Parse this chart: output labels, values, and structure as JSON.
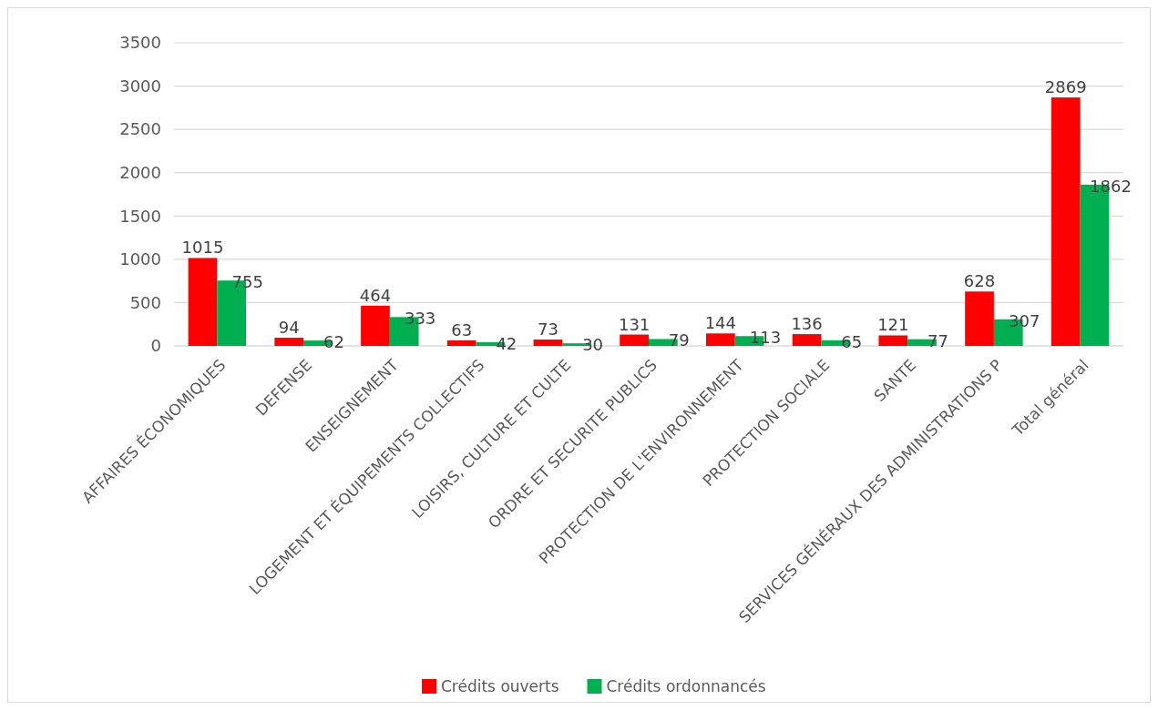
{
  "chart_data": {
    "type": "bar",
    "categories": [
      "AFFAIRES ÉCONOMIQUES",
      "DEFENSE",
      "ENSEIGNEMENT",
      "LOGEMENT ET ÉQUIPEMENTS COLLECTIFS",
      "LOISIRS, CULTURE ET CULTE",
      "ORDRE ET SECURITE PUBLICS",
      "PROTECTION DE L'ENVIRONNEMENT",
      "PROTECTION SOCIALE",
      "SANTE",
      "SERVICES GÉNÉRAUX DES ADMINISTRATIONS P",
      "Total général"
    ],
    "series": [
      {
        "name": "Crédits ouverts",
        "color": "#ff0000",
        "values": [
          1015,
          94,
          464,
          63,
          73,
          131,
          144,
          136,
          121,
          628,
          2869
        ]
      },
      {
        "name": "Crédits ordonnancés",
        "color": "#00b050",
        "values": [
          755,
          62,
          333,
          42,
          30,
          79,
          113,
          65,
          77,
          307,
          1862
        ]
      }
    ],
    "ylim": [
      0,
      3500
    ],
    "yticks": [
      0,
      500,
      1000,
      1500,
      2000,
      2500,
      3000,
      3500
    ],
    "grid": "y",
    "legend": "bottom",
    "data_labels": true
  }
}
